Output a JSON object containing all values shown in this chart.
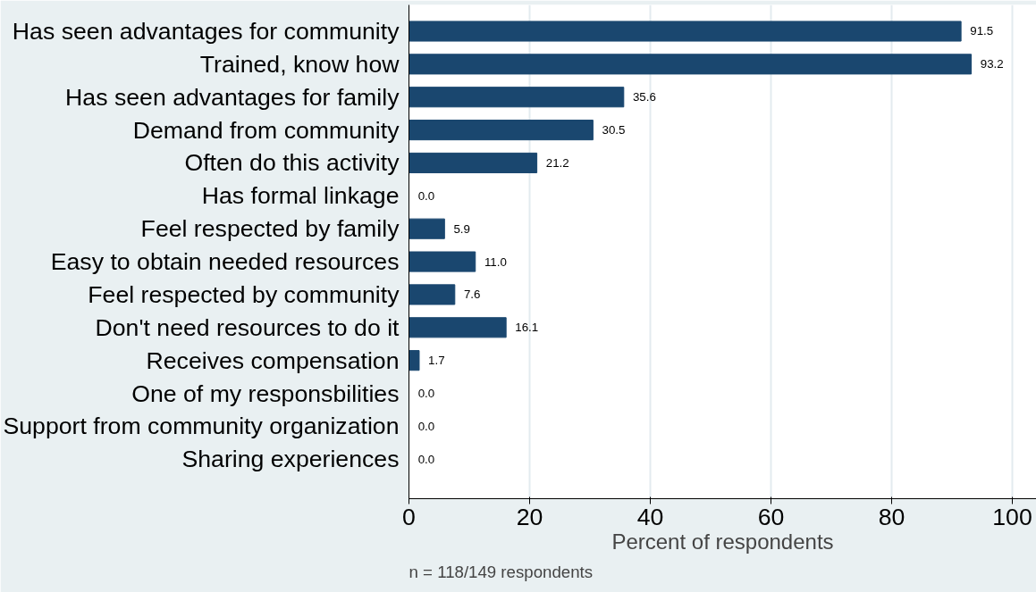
{
  "chart_data": {
    "type": "bar",
    "orientation": "horizontal",
    "categories": [
      "Has seen advantages for community",
      "Trained, know how",
      "Has seen advantages for family",
      "Demand from community",
      "Often do this activity",
      "Has formal linkage",
      "Feel respected by family",
      "Easy to obtain needed resources",
      "Feel respected by community",
      "Don't need resources to do it",
      "Receives compensation",
      "One of my responsbilities",
      "Support from community organization",
      "Sharing experiences"
    ],
    "values": [
      91.5,
      93.2,
      35.6,
      30.5,
      21.2,
      0.0,
      5.9,
      11.0,
      7.6,
      16.1,
      1.7,
      0.0,
      0.0,
      0.0
    ],
    "color": "#1a476f",
    "xlim": [
      0,
      104
    ],
    "xticks": [
      0,
      20,
      40,
      60,
      80,
      100
    ],
    "xlabel": "Percent of respondents",
    "grid": "x",
    "value_labels": [
      "91.5",
      "93.2",
      "35.6",
      "30.5",
      "21.2",
      "0.0",
      "5.9",
      "11.0",
      "7.6",
      "16.1",
      "1.7",
      "0.0",
      "0.0",
      "0.0"
    ],
    "annotations": [
      "n = 118/149 respondents"
    ]
  }
}
